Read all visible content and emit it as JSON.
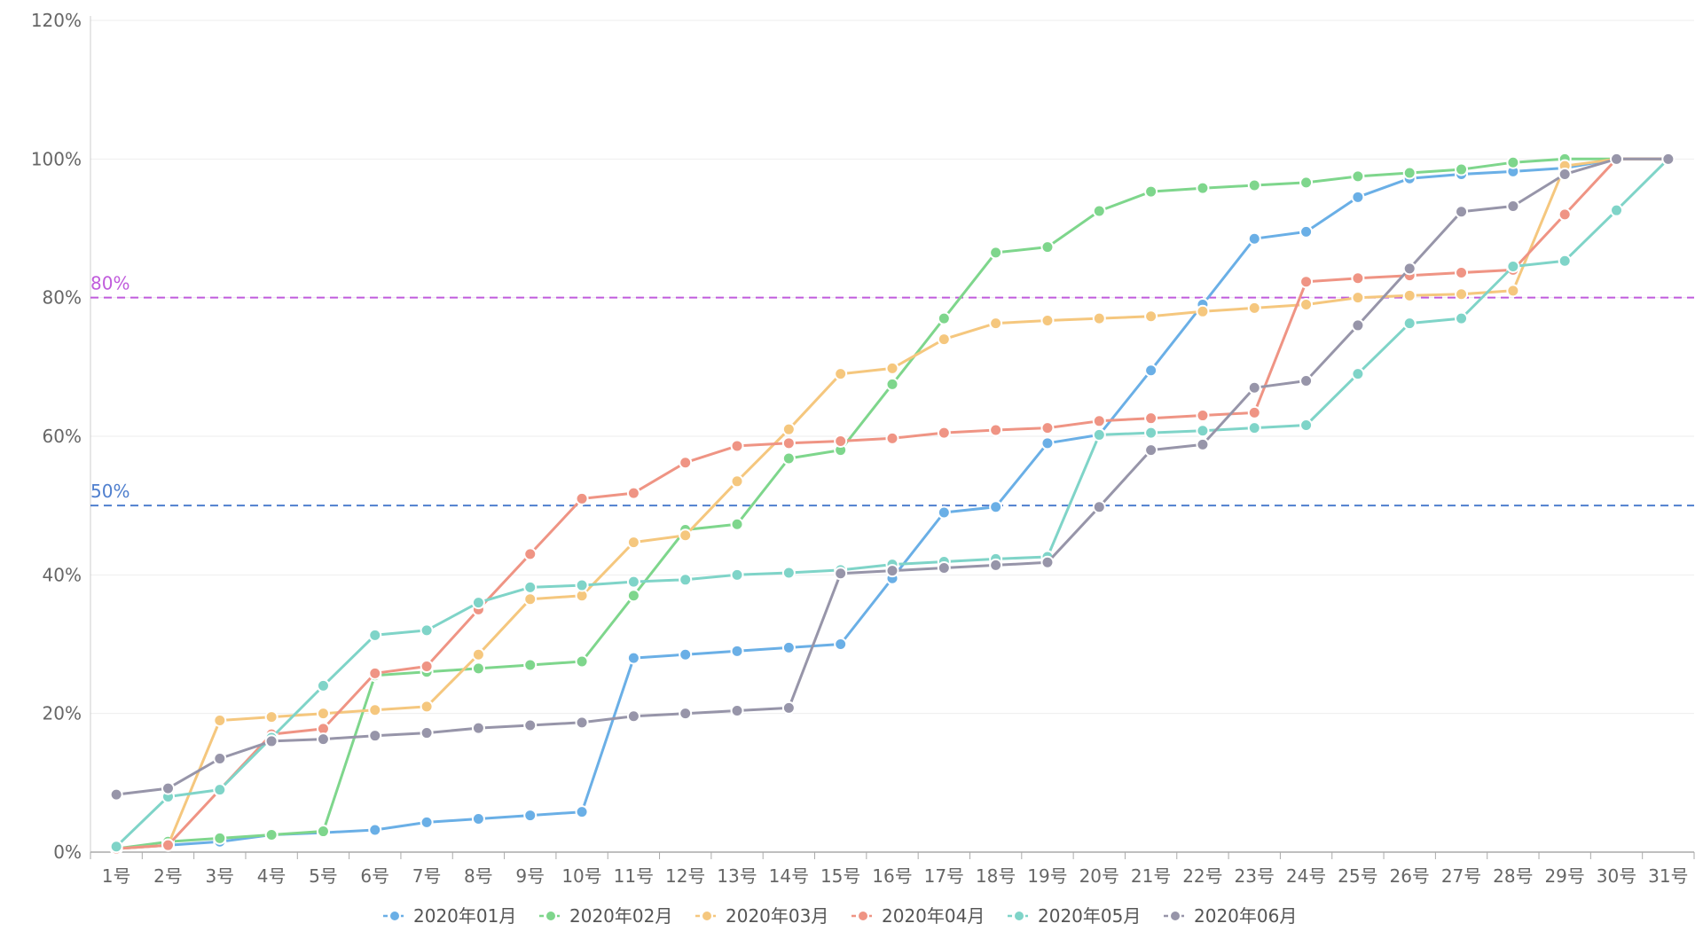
{
  "chart_data": {
    "type": "line",
    "title": "",
    "xlabel": "",
    "ylabel": "",
    "categories": [
      "1号",
      "2号",
      "3号",
      "4号",
      "5号",
      "6号",
      "7号",
      "8号",
      "9号",
      "10号",
      "11号",
      "12号",
      "13号",
      "14号",
      "15号",
      "16号",
      "17号",
      "18号",
      "19号",
      "20号",
      "21号",
      "22号",
      "23号",
      "24号",
      "25号",
      "26号",
      "27号",
      "28号",
      "29号",
      "30号",
      "31号"
    ],
    "y_ticks": [
      "0%",
      "20%",
      "40%",
      "60%",
      "80%",
      "100%",
      "120%"
    ],
    "ylim": [
      0,
      120
    ],
    "grid": true,
    "legend_position": "bottom",
    "reference_lines": [
      {
        "value": 80,
        "label": "80%",
        "color": "#c05cdc"
      },
      {
        "value": 50,
        "label": "50%",
        "color": "#4f7fce"
      }
    ],
    "series": [
      {
        "name": "2020年01月",
        "color": "#6aafe6",
        "values": [
          0.5,
          1,
          1.5,
          2.5,
          2.8,
          3.2,
          4.3,
          4.8,
          5.3,
          5.8,
          28,
          28.5,
          29,
          29.5,
          30,
          39.5,
          49,
          49.8,
          59,
          60.2,
          69.5,
          79,
          88.5,
          89.5,
          94.5,
          97.2,
          97.8,
          98.2,
          98.7,
          100,
          100
        ]
      },
      {
        "name": "2020年02月",
        "color": "#7ed68c",
        "values": [
          0.5,
          1.5,
          2,
          2.5,
          3,
          25.5,
          26,
          26.5,
          27,
          27.5,
          37,
          46.5,
          47.3,
          56.8,
          58,
          67.5,
          77,
          86.5,
          87.3,
          92.5,
          95.3,
          95.8,
          96.2,
          96.6,
          97.5,
          98,
          98.5,
          99.5,
          100,
          100,
          100
        ]
      },
      {
        "name": "2020年03月",
        "color": "#f5c77e",
        "values": [
          0.5,
          1,
          19,
          19.5,
          20,
          20.5,
          21,
          28.5,
          36.5,
          37,
          44.7,
          45.7,
          53.5,
          61,
          69,
          69.8,
          74,
          76.3,
          76.7,
          77,
          77.3,
          78,
          78.5,
          79,
          80,
          80.3,
          80.5,
          81,
          99,
          100,
          100
        ]
      },
      {
        "name": "2020年04月",
        "color": "#ef9484",
        "values": [
          0.5,
          1,
          9,
          17,
          17.8,
          25.8,
          26.8,
          35,
          43,
          51,
          51.8,
          56.2,
          58.6,
          59,
          59.3,
          59.7,
          60.5,
          60.9,
          61.2,
          62.2,
          62.6,
          63,
          63.4,
          82.3,
          82.8,
          83.2,
          83.6,
          84,
          92,
          100,
          100
        ]
      },
      {
        "name": "2020年05月",
        "color": "#7fd4c8",
        "values": [
          0.8,
          8,
          9,
          16.5,
          24,
          31.3,
          32,
          36,
          38.2,
          38.5,
          39,
          39.3,
          40,
          40.3,
          40.7,
          41.5,
          41.9,
          42.3,
          42.6,
          60.2,
          60.5,
          60.8,
          61.2,
          61.6,
          69,
          76.3,
          77,
          84.5,
          85.3,
          92.6,
          100
        ]
      },
      {
        "name": "2020年06月",
        "color": "#9795a9",
        "values": [
          8.3,
          9.2,
          13.5,
          16,
          16.3,
          16.8,
          17.2,
          17.9,
          18.3,
          18.7,
          19.6,
          20,
          20.4,
          20.8,
          40.2,
          40.6,
          41,
          41.4,
          41.8,
          49.8,
          58,
          58.8,
          67,
          68,
          76,
          84.2,
          92.4,
          93.2,
          97.8,
          100,
          100
        ]
      }
    ]
  }
}
